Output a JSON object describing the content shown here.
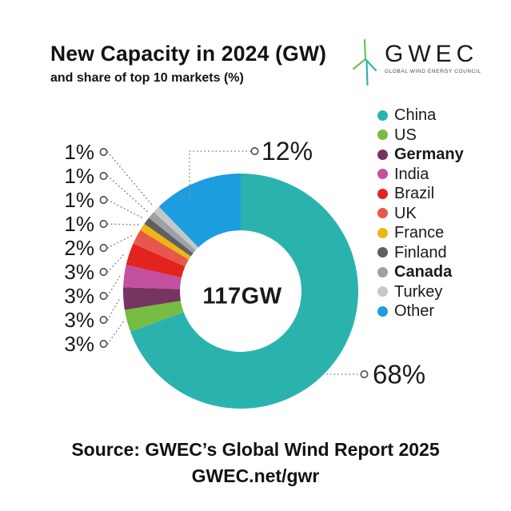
{
  "header": {
    "title": "New Capacity in 2024 (GW)",
    "subtitle": "and share of top 10 markets (%)"
  },
  "logo": {
    "name": "GWEC",
    "tagline": "GLOBAL WIND ENERGY COUNCIL",
    "green": "#72BF44",
    "teal": "#2CB5B0"
  },
  "chart_data": {
    "type": "pie",
    "subtype": "donut",
    "title": "New Capacity in 2024 (GW)",
    "subtitle": "and share of top 10 markets (%)",
    "center_label": "117GW",
    "total_capacity_gw": 117,
    "unit": "%",
    "direction": "clockwise",
    "start_angle_deg": 0,
    "legend_position": "right",
    "legend_bold_items": [
      "Germany",
      "Canada"
    ],
    "series": [
      {
        "name": "China",
        "value": 68,
        "label": "68%",
        "color": "#2AB3AE"
      },
      {
        "name": "US",
        "value": 3,
        "label": "3%",
        "color": "#76BC43"
      },
      {
        "name": "Germany",
        "value": 3,
        "label": "3%",
        "color": "#753462"
      },
      {
        "name": "India",
        "value": 3,
        "label": "3%",
        "color": "#C3509E"
      },
      {
        "name": "Brazil",
        "value": 3,
        "label": "3%",
        "color": "#E2231F"
      },
      {
        "name": "UK",
        "value": 2,
        "label": "2%",
        "color": "#E8574E"
      },
      {
        "name": "France",
        "value": 1,
        "label": "1%",
        "color": "#EDB712"
      },
      {
        "name": "Finland",
        "value": 1,
        "label": "1%",
        "color": "#5F6062"
      },
      {
        "name": "Canada",
        "value": 1,
        "label": "1%",
        "color": "#9EA0A3"
      },
      {
        "name": "Turkey",
        "value": 1,
        "label": "1%",
        "color": "#C6C7C9"
      },
      {
        "name": "Other",
        "value": 12,
        "label": "12%",
        "color": "#1B9DDF"
      }
    ]
  },
  "footer": {
    "source_line1": "Source: GWEC’s Global Wind Report 2025",
    "source_line2": "GWEC.net/gwr"
  }
}
